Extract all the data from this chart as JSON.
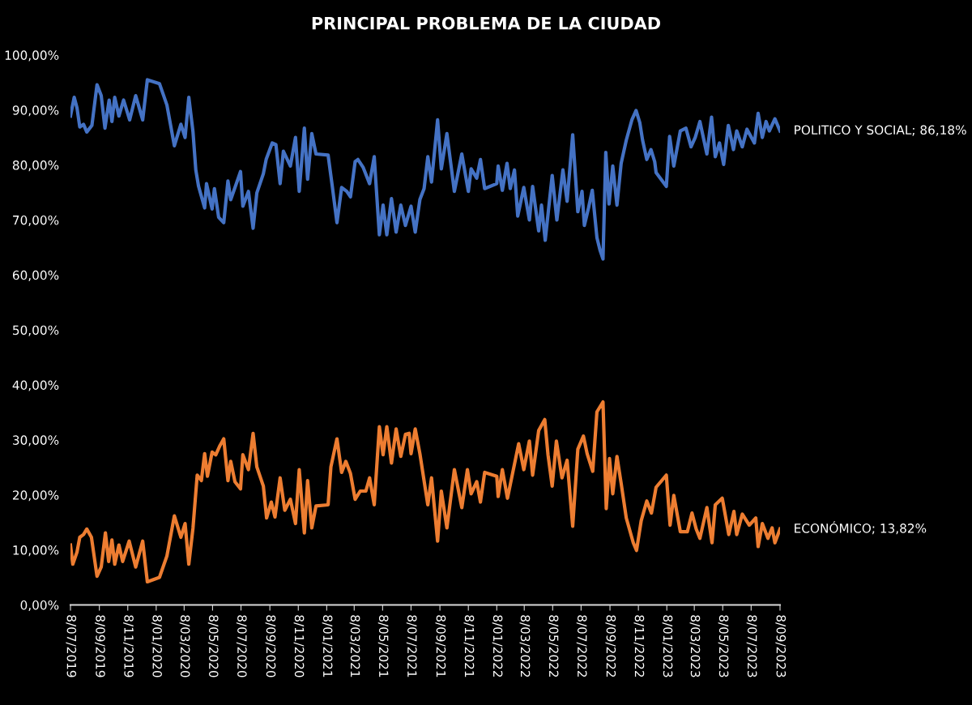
{
  "chart_data": {
    "type": "line",
    "title": "PRINCIPAL PROBLEMA DE LA CIUDAD",
    "xlim": [
      "2019-07-08",
      "2023-09-08"
    ],
    "xticks": [
      {
        "value": "2019-07-08",
        "label": "8/07/2019"
      },
      {
        "value": "2019-09-08",
        "label": "8/09/2019"
      },
      {
        "value": "2019-11-08",
        "label": "8/11/2019"
      },
      {
        "value": "2020-01-08",
        "label": "8/01/2020"
      },
      {
        "value": "2020-03-08",
        "label": "8/03/2020"
      },
      {
        "value": "2020-05-08",
        "label": "8/05/2020"
      },
      {
        "value": "2020-07-08",
        "label": "8/07/2020"
      },
      {
        "value": "2020-09-08",
        "label": "8/09/2020"
      },
      {
        "value": "2020-11-08",
        "label": "8/11/2020"
      },
      {
        "value": "2021-01-08",
        "label": "8/01/2021"
      },
      {
        "value": "2021-03-08",
        "label": "8/03/2021"
      },
      {
        "value": "2021-05-08",
        "label": "8/05/2021"
      },
      {
        "value": "2021-07-08",
        "label": "8/07/2021"
      },
      {
        "value": "2021-09-08",
        "label": "8/09/2021"
      },
      {
        "value": "2021-11-08",
        "label": "8/11/2021"
      },
      {
        "value": "2022-01-08",
        "label": "8/01/2022"
      },
      {
        "value": "2022-03-08",
        "label": "8/03/2022"
      },
      {
        "value": "2022-05-08",
        "label": "8/05/2022"
      },
      {
        "value": "2022-07-08",
        "label": "8/07/2022"
      },
      {
        "value": "2022-09-08",
        "label": "8/09/2022"
      },
      {
        "value": "2022-11-08",
        "label": "8/11/2022"
      },
      {
        "value": "2023-01-08",
        "label": "8/01/2023"
      },
      {
        "value": "2023-03-08",
        "label": "8/03/2023"
      },
      {
        "value": "2023-05-08",
        "label": "8/05/2023"
      },
      {
        "value": "2023-07-08",
        "label": "8/07/2023"
      },
      {
        "value": "2023-09-08",
        "label": "8/09/2023"
      }
    ],
    "ylim": [
      0,
      100
    ],
    "yticks": [
      {
        "value": 0,
        "label": "0,00%"
      },
      {
        "value": 10,
        "label": "10,00%"
      },
      {
        "value": 20,
        "label": "20,00%"
      },
      {
        "value": 30,
        "label": "30,00%"
      },
      {
        "value": 40,
        "label": "40,00%"
      },
      {
        "value": 50,
        "label": "50,00%"
      },
      {
        "value": 60,
        "label": "60,00%"
      },
      {
        "value": 70,
        "label": "70,00%"
      },
      {
        "value": 80,
        "label": "80,00%"
      },
      {
        "value": 90,
        "label": "90,00%"
      },
      {
        "value": 100,
        "label": "100,00%"
      }
    ],
    "grid": false,
    "marker": "none",
    "line_style": "solid",
    "series": [
      {
        "color": "#4472c4",
        "x": [
          "2019-07-08",
          "2019-07-16",
          "2019-07-22",
          "2019-07-28",
          "2019-08-05",
          "2019-08-12",
          "2019-08-23",
          "2019-09-03",
          "2019-09-12",
          "2019-09-20",
          "2019-09-29",
          "2019-10-05",
          "2019-10-11",
          "2019-10-20",
          "2019-10-30",
          "2019-11-12",
          "2019-11-25",
          "2019-12-10",
          "2019-12-20",
          "2020-01-15",
          "2020-01-31",
          "2020-02-16",
          "2020-03-01",
          "2020-03-10",
          "2020-03-18",
          "2020-03-27",
          "2020-04-02",
          "2020-04-08",
          "2020-04-21",
          "2020-04-25",
          "2020-05-07",
          "2020-05-12",
          "2020-05-21",
          "2020-06-01",
          "2020-06-10",
          "2020-06-16",
          "2020-07-07",
          "2020-07-12",
          "2020-07-24",
          "2020-08-03",
          "2020-08-11",
          "2020-08-25",
          "2020-08-31",
          "2020-09-13",
          "2020-09-21",
          "2020-09-30",
          "2020-10-07",
          "2020-10-22",
          "2020-11-02",
          "2020-11-10",
          "2020-11-21",
          "2020-11-28",
          "2020-12-07",
          "2020-12-16",
          "2021-01-11",
          "2021-01-20",
          "2021-01-30",
          "2021-02-09",
          "2021-02-20",
          "2021-02-28",
          "2021-03-10",
          "2021-03-16",
          "2021-03-27",
          "2021-04-10",
          "2021-04-20",
          "2021-05-01",
          "2021-05-09",
          "2021-05-17",
          "2021-05-27",
          "2021-06-06",
          "2021-06-16",
          "2021-06-26",
          "2021-07-08",
          "2021-07-17",
          "2021-07-27",
          "2021-08-05",
          "2021-08-13",
          "2021-08-21",
          "2021-09-03",
          "2021-09-11",
          "2021-09-23",
          "2021-10-02",
          "2021-10-09",
          "2021-10-25",
          "2021-11-08",
          "2021-11-14",
          "2021-11-26",
          "2021-12-04",
          "2021-12-13",
          "2022-01-08",
          "2022-01-11",
          "2022-01-20",
          "2022-01-30",
          "2022-02-06",
          "2022-02-15",
          "2022-02-22",
          "2022-03-07",
          "2022-03-19",
          "2022-03-26",
          "2022-04-08",
          "2022-04-14",
          "2022-04-22",
          "2022-05-07",
          "2022-05-17",
          "2022-05-30",
          "2022-06-08",
          "2022-06-20",
          "2022-07-01",
          "2022-07-10",
          "2022-07-15",
          "2022-07-24",
          "2022-08-01",
          "2022-08-11",
          "2022-08-18",
          "2022-08-24",
          "2022-08-30",
          "2022-09-06",
          "2022-09-14",
          "2022-09-23",
          "2022-10-02",
          "2022-10-13",
          "2022-10-25",
          "2022-11-03",
          "2022-11-11",
          "2022-11-17",
          "2022-11-26",
          "2022-12-05",
          "2022-12-13",
          "2022-12-16",
          "2023-01-07",
          "2023-01-14",
          "2023-01-23",
          "2023-02-06",
          "2023-02-18",
          "2023-03-01",
          "2023-03-10",
          "2023-03-20",
          "2023-04-04",
          "2023-04-14",
          "2023-04-22",
          "2023-05-01",
          "2023-05-10",
          "2023-05-20",
          "2023-05-31",
          "2023-06-07",
          "2023-06-19",
          "2023-06-29",
          "2023-07-15",
          "2023-07-23",
          "2023-08-01",
          "2023-08-09",
          "2023-08-16",
          "2023-08-28",
          "2023-09-08"
        ],
        "values": [
          88.9,
          92.3,
          90.4,
          86.9,
          87.4,
          86.0,
          87.2,
          94.6,
          92.6,
          86.7,
          91.8,
          87.9,
          92.3,
          88.9,
          91.8,
          88.2,
          92.6,
          88.2,
          95.5,
          94.8,
          90.9,
          83.5,
          87.4,
          85.0,
          92.3,
          86.0,
          79.1,
          76.1,
          72.2,
          76.6,
          72.0,
          75.7,
          70.5,
          69.5,
          77.1,
          73.7,
          78.8,
          72.5,
          75.2,
          68.5,
          74.9,
          78.4,
          81.0,
          84.0,
          83.7,
          76.6,
          82.5,
          79.8,
          85.0,
          75.2,
          86.7,
          77.4,
          85.7,
          82.0,
          81.8,
          76.1,
          69.5,
          75.9,
          75.2,
          74.2,
          80.6,
          81.0,
          79.6,
          76.6,
          81.5,
          67.3,
          72.7,
          67.3,
          73.9,
          67.8,
          72.7,
          69.0,
          72.5,
          67.8,
          73.7,
          75.7,
          81.5,
          76.9,
          88.2,
          79.3,
          85.7,
          79.8,
          75.2,
          82.0,
          75.2,
          79.3,
          77.6,
          81.0,
          75.7,
          76.6,
          79.8,
          75.4,
          80.3,
          75.7,
          79.1,
          70.7,
          75.9,
          70.0,
          76.1,
          68.0,
          72.7,
          66.3,
          78.1,
          70.0,
          79.1,
          73.4,
          85.5,
          71.5,
          75.2,
          69.0,
          72.2,
          75.4,
          66.8,
          64.4,
          62.9,
          82.3,
          72.9,
          79.8,
          72.7,
          80.3,
          84.5,
          88.2,
          89.9,
          87.7,
          84.5,
          81.0,
          82.8,
          80.6,
          78.6,
          76.1,
          85.2,
          79.8,
          86.2,
          86.7,
          83.3,
          85.0,
          87.9,
          82.0,
          88.7,
          81.5,
          84.0,
          80.1,
          87.2,
          82.8,
          86.2,
          83.3,
          86.5,
          84.0,
          89.4,
          85.0,
          87.9,
          86.2,
          88.4,
          86.18
        ]
      },
      {
        "color": "#ed7d31",
        "x": [
          "2019-07-08",
          "2019-07-13",
          "2019-07-22",
          "2019-07-28",
          "2019-08-05",
          "2019-08-12",
          "2019-08-22",
          "2019-09-03",
          "2019-09-12",
          "2019-09-21",
          "2019-09-28",
          "2019-10-05",
          "2019-10-11",
          "2019-10-20",
          "2019-10-28",
          "2019-11-11",
          "2019-11-25",
          "2019-12-10",
          "2019-12-20",
          "2020-01-15",
          "2020-01-31",
          "2020-02-16",
          "2020-03-01",
          "2020-03-10",
          "2020-03-18",
          "2020-03-27",
          "2020-04-05",
          "2020-04-14",
          "2020-04-21",
          "2020-04-27",
          "2020-05-07",
          "2020-05-15",
          "2020-05-24",
          "2020-06-01",
          "2020-06-10",
          "2020-06-16",
          "2020-06-25",
          "2020-07-07",
          "2020-07-12",
          "2020-07-24",
          "2020-08-03",
          "2020-08-11",
          "2020-08-25",
          "2020-09-01",
          "2020-09-11",
          "2020-09-19",
          "2020-09-30",
          "2020-10-10",
          "2020-10-22",
          "2020-11-02",
          "2020-11-10",
          "2020-11-21",
          "2020-11-28",
          "2020-12-07",
          "2020-12-16",
          "2021-01-11",
          "2021-01-17",
          "2021-01-30",
          "2021-02-09",
          "2021-02-18",
          "2021-02-28",
          "2021-03-10",
          "2021-03-21",
          "2021-04-02",
          "2021-04-10",
          "2021-04-20",
          "2021-05-01",
          "2021-05-09",
          "2021-05-17",
          "2021-05-27",
          "2021-06-06",
          "2021-06-16",
          "2021-06-26",
          "2021-07-04",
          "2021-07-08",
          "2021-07-17",
          "2021-07-27",
          "2021-08-13",
          "2021-08-21",
          "2021-09-03",
          "2021-09-11",
          "2021-09-23",
          "2021-10-09",
          "2021-10-25",
          "2021-11-06",
          "2021-11-14",
          "2021-11-26",
          "2021-12-04",
          "2021-12-13",
          "2022-01-08",
          "2022-01-11",
          "2022-01-20",
          "2022-01-31",
          "2022-02-24",
          "2022-03-07",
          "2022-03-19",
          "2022-03-26",
          "2022-04-08",
          "2022-04-21",
          "2022-04-28",
          "2022-05-07",
          "2022-05-16",
          "2022-05-28",
          "2022-06-08",
          "2022-06-20",
          "2022-07-01",
          "2022-07-13",
          "2022-07-21",
          "2022-08-02",
          "2022-08-11",
          "2022-08-24",
          "2022-08-31",
          "2022-09-07",
          "2022-09-14",
          "2022-09-23",
          "2022-10-02",
          "2022-10-13",
          "2022-10-28",
          "2022-11-04",
          "2022-11-14",
          "2022-11-26",
          "2022-12-06",
          "2022-12-16",
          "2023-01-07",
          "2023-01-15",
          "2023-01-23",
          "2023-02-06",
          "2023-02-21",
          "2023-03-03",
          "2023-03-12",
          "2023-03-20",
          "2023-04-04",
          "2023-04-15",
          "2023-04-22",
          "2023-05-07",
          "2023-05-21",
          "2023-06-01",
          "2023-06-07",
          "2023-06-19",
          "2023-07-04",
          "2023-07-18",
          "2023-07-23",
          "2023-08-01",
          "2023-08-13",
          "2023-08-22",
          "2023-08-28",
          "2023-09-08"
        ],
        "values": [
          10.9,
          7.4,
          9.6,
          12.3,
          12.8,
          13.8,
          12.3,
          5.2,
          6.9,
          13.1,
          7.9,
          11.8,
          7.4,
          10.9,
          7.9,
          11.6,
          6.9,
          11.6,
          4.2,
          5.0,
          8.9,
          16.2,
          12.3,
          14.8,
          7.4,
          14.0,
          23.6,
          22.6,
          27.5,
          23.4,
          27.8,
          27.3,
          29.0,
          30.2,
          22.6,
          26.1,
          22.4,
          21.1,
          27.3,
          24.6,
          31.2,
          25.1,
          21.6,
          15.8,
          18.7,
          16.0,
          23.1,
          17.2,
          19.2,
          14.8,
          24.6,
          13.1,
          22.6,
          14.0,
          18.0,
          18.2,
          25.1,
          30.2,
          24.1,
          26.1,
          23.9,
          19.2,
          20.7,
          20.7,
          23.1,
          18.2,
          32.4,
          27.3,
          32.4,
          25.8,
          32.0,
          27.0,
          31.0,
          31.2,
          27.5,
          32.0,
          27.5,
          18.2,
          23.1,
          11.6,
          20.7,
          14.0,
          24.6,
          17.7,
          24.6,
          20.2,
          22.4,
          18.7,
          24.1,
          23.4,
          19.7,
          24.6,
          19.4,
          29.3,
          24.6,
          29.8,
          23.6,
          31.7,
          33.7,
          27.3,
          21.6,
          29.8,
          23.1,
          26.3,
          14.3,
          28.3,
          30.7,
          27.5,
          24.3,
          35.1,
          36.9,
          17.5,
          26.6,
          20.2,
          27.0,
          22.1,
          15.8,
          11.3,
          9.9,
          15.3,
          18.9,
          16.7,
          21.4,
          23.6,
          14.5,
          19.9,
          13.3,
          13.3,
          16.7,
          13.8,
          12.1,
          17.7,
          11.3,
          18.2,
          19.4,
          12.8,
          17.0,
          12.8,
          16.5,
          14.5,
          15.8,
          10.6,
          14.8,
          12.1,
          14.0,
          11.3,
          13.82
        ]
      }
    ],
    "annotations": [
      {
        "text": "POLITICO Y SOCIAL; 86,18%",
        "x": "2023-09-08",
        "y": 86.18
      },
      {
        "text": "ECONÓMICO; 13,82%",
        "x": "2023-09-08",
        "y": 13.82
      }
    ]
  }
}
